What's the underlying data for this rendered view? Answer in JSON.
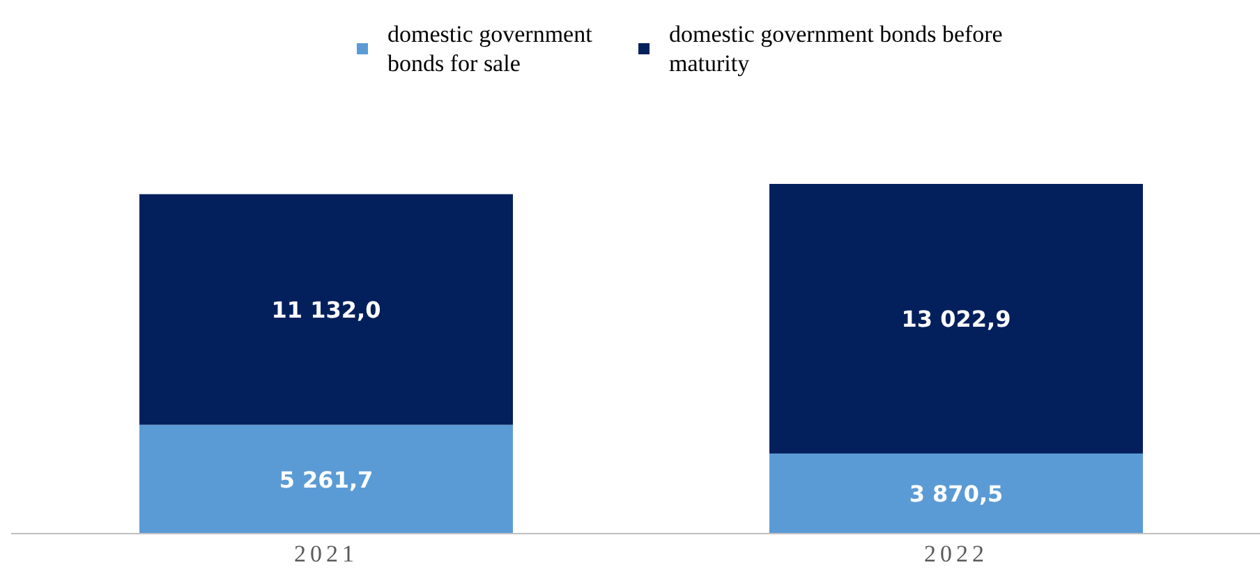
{
  "chart_data": {
    "type": "bar",
    "stacked": true,
    "categories": [
      "2021",
      "2022"
    ],
    "series": [
      {
        "name": "domestic government bonds for sale",
        "color": "#5b9bd5",
        "values": [
          5261.7,
          3870.5
        ],
        "value_labels": [
          "5 261,7",
          "3 870,5"
        ]
      },
      {
        "name": "domestic government bonds before maturity",
        "color": "#03205c",
        "values": [
          11132.0,
          13022.9
        ],
        "value_labels": [
          "11 132,0",
          "13 022,9"
        ]
      }
    ],
    "legend": "top"
  }
}
